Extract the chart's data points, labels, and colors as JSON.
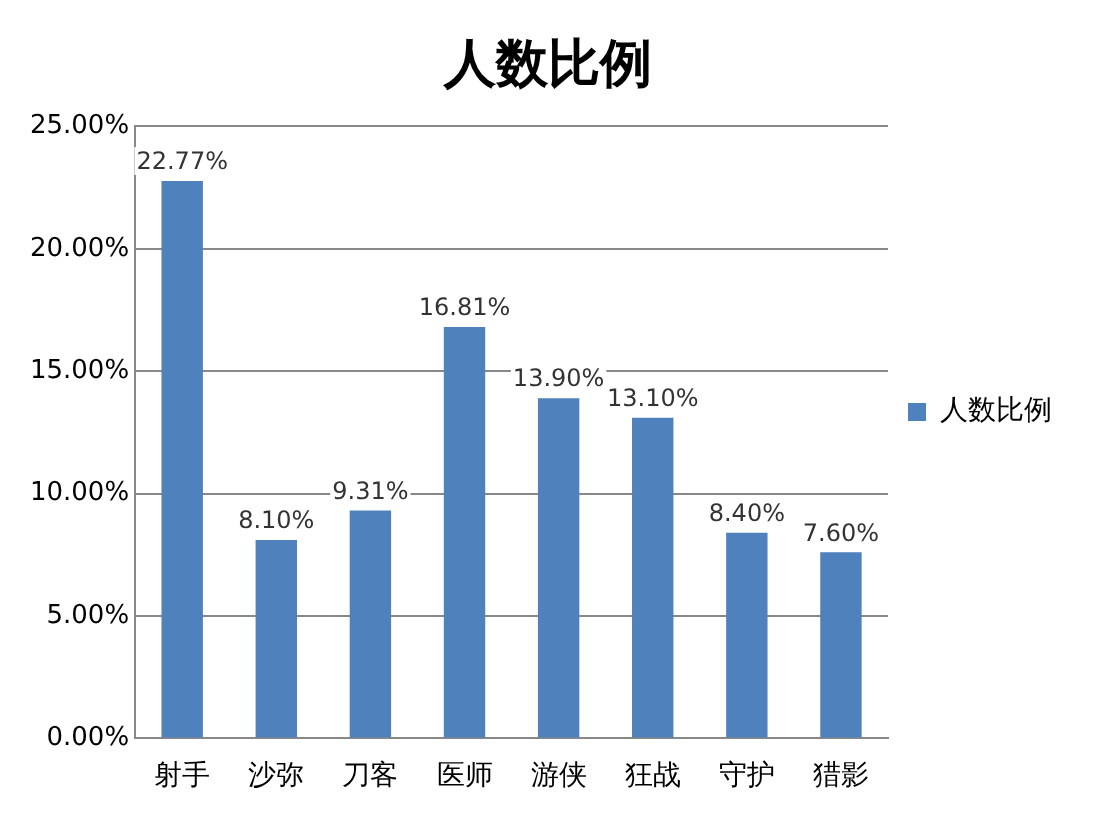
{
  "chart_data": {
    "type": "bar",
    "title": "人数比例",
    "categories": [
      "射手",
      "沙弥",
      "刀客",
      "医师",
      "游侠",
      "狂战",
      "守护",
      "猎影"
    ],
    "series": [
      {
        "name": "人数比例",
        "color": "#4f81bd",
        "values": [
          22.77,
          8.1,
          9.31,
          16.81,
          13.9,
          13.1,
          8.4,
          7.6
        ],
        "value_labels": [
          "22.77%",
          "8.10%",
          "9.31%",
          "16.81%",
          "13.90%",
          "13.10%",
          "8.40%",
          "7.60%"
        ]
      }
    ],
    "ylim": [
      0,
      25
    ],
    "yticks": [
      {
        "value": 0,
        "label": "0.00%"
      },
      {
        "value": 5,
        "label": "5.00%"
      },
      {
        "value": 10,
        "label": "10.00%"
      },
      {
        "value": 15,
        "label": "15.00%"
      },
      {
        "value": 20,
        "label": "20.00%"
      },
      {
        "value": 25,
        "label": "25.00%"
      }
    ],
    "grid": "y",
    "legend": "right"
  }
}
